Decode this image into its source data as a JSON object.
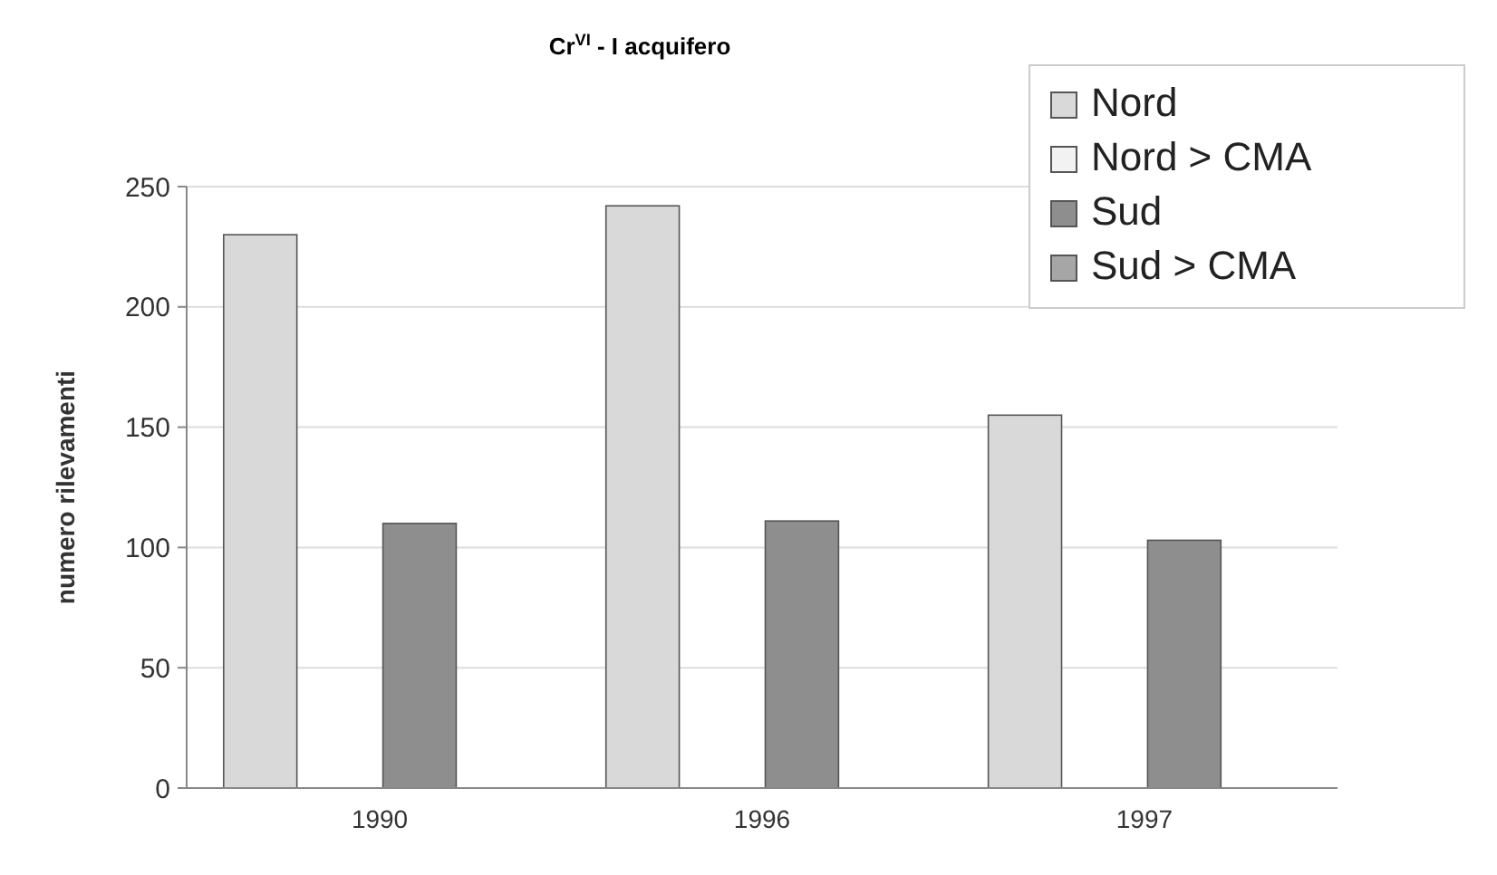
{
  "chart_data": {
    "type": "bar",
    "title": "Cr$^{VI}$ - I acquifero",
    "ylabel": "numero rilevamenti",
    "categories": [
      "1990",
      "1996",
      "1997"
    ],
    "series": [
      {
        "name": "Nord",
        "color": "#d9d9d9",
        "values": [
          230,
          242,
          155
        ]
      },
      {
        "name": "Nord > CMA",
        "color": "#f2f2f2",
        "values": [
          0,
          0,
          0
        ]
      },
      {
        "name": "Sud",
        "color": "#8e8e8e",
        "values": [
          110,
          111,
          103
        ]
      },
      {
        "name": "Sud > CMA",
        "color": "#a6a6a6",
        "values": [
          0,
          0,
          0
        ]
      }
    ],
    "ylim": [
      0,
      250
    ],
    "yticks": [
      0,
      50,
      100,
      150,
      200,
      250
    ],
    "grid": "y",
    "legend": "top right"
  }
}
